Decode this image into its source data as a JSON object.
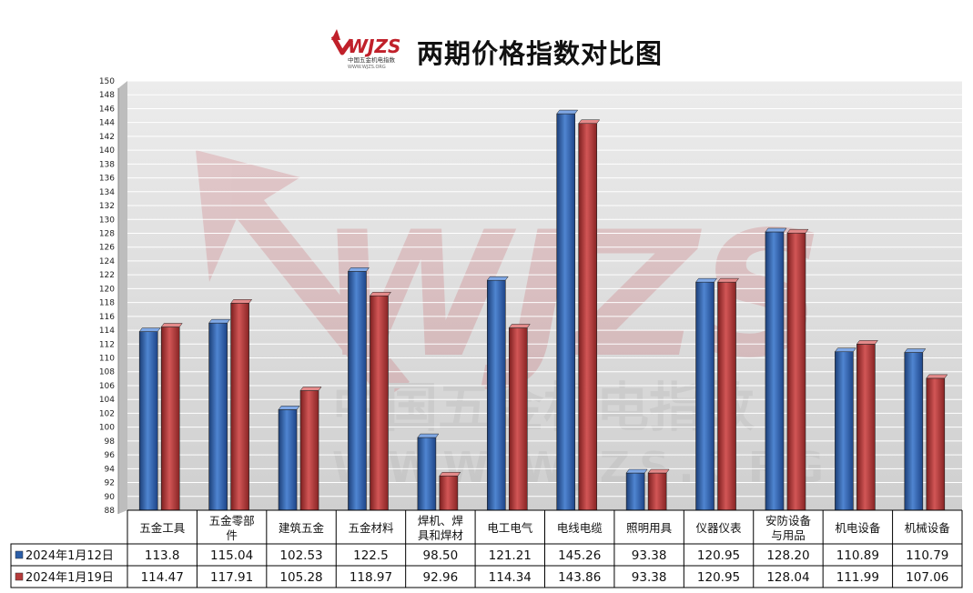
{
  "title": "两期价格指数对比图",
  "logo": {
    "text": "WJZS",
    "subtitle": "中国五金机电指数",
    "url": "WWW.WJZS.ORG"
  },
  "watermark": {
    "text": "WJZS",
    "cn": "中国五金机电指数",
    "url": "WWW.WJZS.ORG"
  },
  "colors": {
    "series1": "#2b5ea8",
    "series2": "#b53a3a",
    "plot_bg": "#d9d9d9",
    "grid": "#ffffff"
  },
  "chart_data": {
    "type": "bar",
    "title": "两期价格指数对比图",
    "xlabel": "",
    "ylabel": "",
    "ylim": [
      88,
      150
    ],
    "ytick_step": 2,
    "grid": true,
    "legend": "data-table-left",
    "categories": [
      "五金工具",
      "五金零部件",
      "建筑五金",
      "五金材料",
      "焊机、焊具和焊材",
      "电工电气",
      "电线电缆",
      "照明用具",
      "仪器仪表",
      "安防设备与用品",
      "机电设备",
      "机械设备"
    ],
    "category_lines": [
      [
        "五金工具"
      ],
      [
        "五金零部",
        "件"
      ],
      [
        "建筑五金"
      ],
      [
        "五金材料"
      ],
      [
        "焊机、焊",
        "具和焊材"
      ],
      [
        "电工电气"
      ],
      [
        "电线电缆"
      ],
      [
        "照明用具"
      ],
      [
        "仪器仪表"
      ],
      [
        "安防设备",
        "与用品"
      ],
      [
        "机电设备"
      ],
      [
        "机械设备"
      ]
    ],
    "series": [
      {
        "name": "2024年1月12日",
        "values": [
          113.8,
          115.04,
          102.53,
          122.5,
          98.5,
          121.21,
          145.26,
          93.38,
          120.95,
          128.2,
          110.89,
          110.79
        ],
        "labels": [
          "113.8",
          "115.04",
          "102.53",
          "122.5",
          "98.50",
          "121.21",
          "145.26",
          "93.38",
          "120.95",
          "128.20",
          "110.89",
          "110.79"
        ]
      },
      {
        "name": "2024年1月19日",
        "values": [
          114.47,
          117.91,
          105.28,
          118.97,
          92.96,
          114.34,
          143.86,
          93.38,
          120.95,
          128.04,
          111.99,
          107.06
        ],
        "labels": [
          "114.47",
          "117.91",
          "105.28",
          "118.97",
          "92.96",
          "114.34",
          "143.86",
          "93.38",
          "120.95",
          "128.04",
          "111.99",
          "107.06"
        ]
      }
    ]
  }
}
